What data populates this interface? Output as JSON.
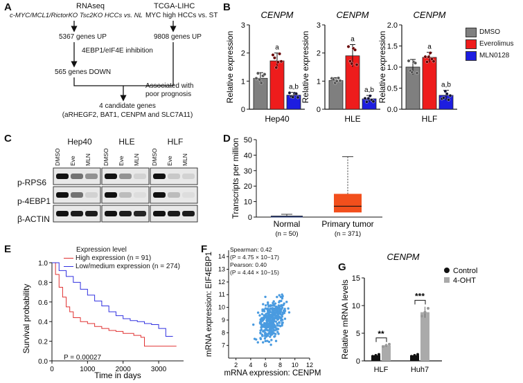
{
  "panel_labels": {
    "A": "A",
    "B": "B",
    "C": "C",
    "D": "D",
    "E": "E",
    "F": "F",
    "G": "G"
  },
  "panelA": {
    "rnaseq_title": "RNAseq",
    "rnaseq_sub": "c-MYC/MCL1/RictorKO Tsc2KO HCCs vs. NL",
    "tcga_title": "TCGA-LIHC",
    "tcga_sub": "MYC high HCCs vs. ST",
    "genes_up_left": "5367 genes UP",
    "inhibition": "4EBP1/eIF4E inhibition",
    "genes_up_right": "9808 genes UP",
    "genes_down": "565 genes DOWN",
    "assoc_line1": "Associated with",
    "assoc_line2": "poor prognosis",
    "candidates_line1": "4 candidate genes",
    "candidates_line2": "(aRHEGF2, BAT1, CENPM and SLC7A11)"
  },
  "panelB": {
    "gene": "CENPM",
    "ylabel": "Relative expression",
    "legend": [
      {
        "label": "DMSO",
        "color": "#7f7f7f"
      },
      {
        "label": "Everolimus",
        "color": "#ee1c1c"
      },
      {
        "label": "MLN0128",
        "color": "#1d1de0"
      }
    ],
    "sig_a": "a",
    "sig_ab": "a,b"
  },
  "panelC": {
    "cell_lines": [
      "Hep40",
      "HLE",
      "HLF"
    ],
    "treatments": [
      "DMSO",
      "Eve",
      "MLN"
    ],
    "rows": [
      "p-RPS6",
      "p-4EBP1",
      "β-ACTIN"
    ]
  },
  "panelE": {
    "legend_title": "Expression level",
    "high": "High expression (n = 91)",
    "low": "Low/medium expression (n = 274)",
    "pvalue": "P = 0.00027",
    "xlabel": "Time in days",
    "ylabel": "Survival probability"
  },
  "panelF": {
    "spearman": "Spearman: 0.42",
    "spearman_p": "(P = 4.75 × 10−17)",
    "pearson": "Pearson: 0.40",
    "pearson_p": "(P = 4.44 × 10−15)",
    "xlabel": "mRNA expression: CENPM",
    "ylabel": "mRNA expression: EIF4EBP1"
  },
  "chart_data": [
    {
      "id": "B-Hep40",
      "type": "bar",
      "title": "CENPM",
      "xlabel": "Hep40",
      "ylabel": "Relative expression",
      "ylim": [
        0,
        3
      ],
      "yticks": [
        "0",
        "1",
        "2",
        "3"
      ],
      "categories": [
        "DMSO",
        "Everolimus",
        "MLN0128"
      ],
      "values": [
        1.1,
        1.72,
        0.5
      ],
      "errors": [
        0.2,
        0.28,
        0.1
      ],
      "annotations": [
        "",
        "a",
        "a,b"
      ]
    },
    {
      "id": "B-HLE",
      "type": "bar",
      "title": "CENPM",
      "xlabel": "HLE",
      "ylabel": "Relative expression",
      "ylim": [
        0,
        3
      ],
      "yticks": [
        "0",
        "1",
        "2",
        "3"
      ],
      "categories": [
        "DMSO",
        "Everolimus",
        "MLN0128"
      ],
      "values": [
        1.02,
        1.9,
        0.37
      ],
      "errors": [
        0.1,
        0.4,
        0.12
      ],
      "annotations": [
        "",
        "a",
        "a,b"
      ]
    },
    {
      "id": "B-HLF",
      "type": "bar",
      "title": "CENPM",
      "xlabel": "HLF",
      "ylabel": "Relative expression",
      "ylim": [
        0,
        2.0
      ],
      "yticks": [
        "0.0",
        "0.5",
        "1.0",
        "1.5",
        "2.0"
      ],
      "categories": [
        "DMSO",
        "Everolimus",
        "MLN0128"
      ],
      "values": [
        1.0,
        1.23,
        0.33
      ],
      "errors": [
        0.18,
        0.12,
        0.12
      ],
      "annotations": [
        "",
        "a",
        "a,b"
      ]
    },
    {
      "id": "D",
      "type": "box",
      "ylabel": "Transcripts per million",
      "ylim": [
        0,
        50
      ],
      "yticks": [
        "0",
        "10",
        "20",
        "30",
        "40",
        "50"
      ],
      "categories": [
        "Normal",
        "Primary tumor"
      ],
      "sublabels": [
        "(n = 50)",
        "(n = 371)"
      ],
      "boxes": [
        {
          "min": 0,
          "q1": 0.3,
          "median": 0.5,
          "q3": 0.8,
          "max": 1.8
        },
        {
          "min": 0,
          "q1": 3,
          "median": 7,
          "q3": 15,
          "max": 39
        }
      ]
    },
    {
      "id": "E",
      "type": "line",
      "xlabel": "Time in days",
      "ylabel": "Survival probability",
      "xlim": [
        0,
        3700
      ],
      "ylim": [
        0,
        1.0
      ],
      "xticks": [
        "0",
        "1000",
        "2000",
        "3000"
      ],
      "yticks": [
        "0.0",
        "0.2",
        "0.4",
        "0.6",
        "0.8",
        "1.0"
      ],
      "series": [
        {
          "name": "High expression (n = 91)",
          "color": "#e03030",
          "x": [
            0,
            100,
            200,
            300,
            400,
            500,
            600,
            800,
            1000,
            1200,
            1400,
            1600,
            1800,
            2000,
            2300,
            2500,
            2600,
            3000,
            3500
          ],
          "y": [
            1.0,
            0.88,
            0.75,
            0.65,
            0.55,
            0.5,
            0.44,
            0.4,
            0.38,
            0.35,
            0.33,
            0.31,
            0.3,
            0.28,
            0.26,
            0.24,
            0.15,
            0.15,
            0.15
          ]
        },
        {
          "name": "Low/medium expression (n = 274)",
          "color": "#3030e0",
          "x": [
            0,
            200,
            400,
            600,
            800,
            1000,
            1200,
            1400,
            1600,
            1800,
            2000,
            2200,
            2400,
            2600,
            2800,
            3000,
            3200,
            3400
          ],
          "y": [
            1.0,
            0.92,
            0.86,
            0.8,
            0.73,
            0.67,
            0.61,
            0.56,
            0.5,
            0.46,
            0.43,
            0.41,
            0.4,
            0.38,
            0.37,
            0.33,
            0.25,
            0.25
          ]
        }
      ]
    },
    {
      "id": "F",
      "type": "scatter",
      "xlabel": "mRNA expression: CENPM",
      "ylabel": "mRNA expression: EIF4EBP1",
      "xlim": [
        1,
        12
      ],
      "ylim": [
        6,
        14.5
      ],
      "xticks": [
        "2",
        "4",
        "6",
        "8",
        "10",
        "12"
      ],
      "yticks": [
        "7",
        "8",
        "9",
        "10",
        "11",
        "12",
        "13",
        "14"
      ],
      "points_description": "371 samples, positively correlated",
      "n": 371,
      "color": "#4a9be0"
    },
    {
      "id": "G",
      "type": "bar",
      "title": "CENPM",
      "ylabel": "Relative mRNA levels",
      "ylim": [
        0,
        15
      ],
      "yticks": [
        "0",
        "5",
        "10",
        "15"
      ],
      "categories": [
        "HLF",
        "Huh7"
      ],
      "series": [
        {
          "name": "Control",
          "color": "#111111",
          "values": [
            1.0,
            1.0
          ]
        },
        {
          "name": "4-OHT",
          "color": "#aaaaaa",
          "values": [
            2.8,
            8.8
          ]
        }
      ],
      "significance": [
        "**",
        "***"
      ]
    }
  ]
}
